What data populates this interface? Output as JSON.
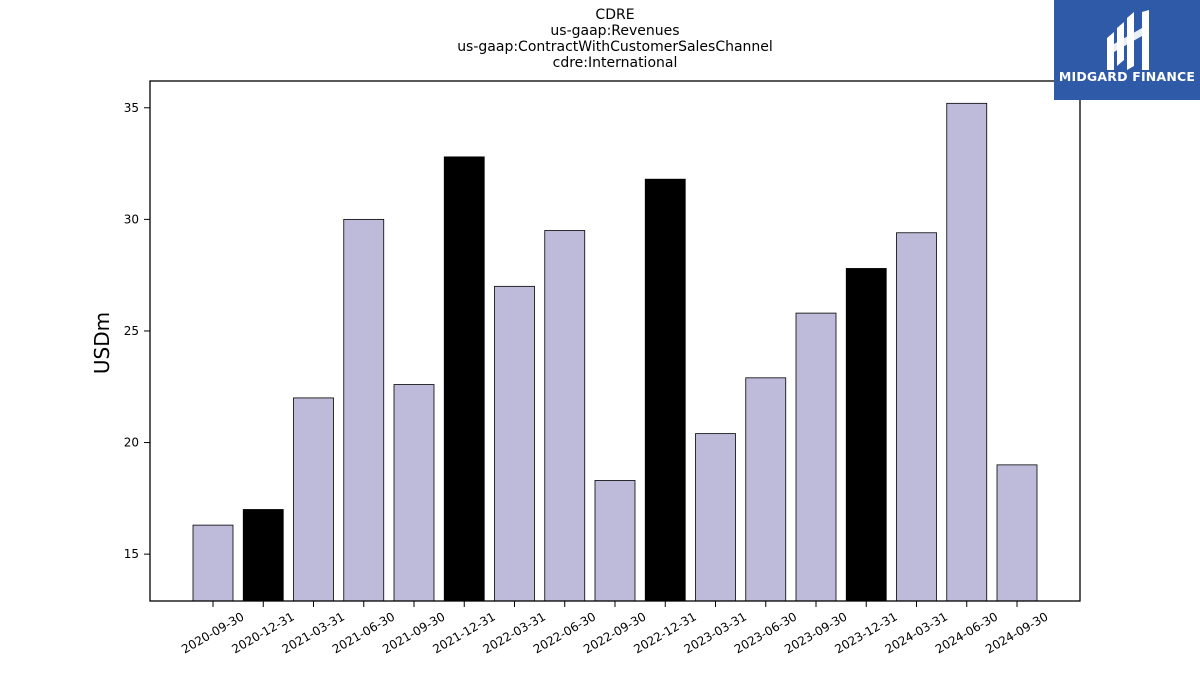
{
  "title_lines": [
    "CDRE",
    "us-gaap:Revenues",
    "us-gaap:ContractWithCustomerSalesChannel",
    "cdre:International"
  ],
  "logo": {
    "text": "MIDGARD FINANCE",
    "bg_color": "#2f5aa8"
  },
  "colors": {
    "normal": "#bebada",
    "highlight": "#000000",
    "edge": "#000000"
  },
  "chart_data": {
    "type": "bar",
    "title": "CDRE\nus-gaap:Revenues\nus-gaap:ContractWithCustomerSalesChannel\ncdre:International",
    "xlabel": "",
    "ylabel": "USDm",
    "ylim": [
      12.9,
      36.2
    ],
    "yticks": [
      15,
      20,
      25,
      30,
      35
    ],
    "categories": [
      "2020-09-30",
      "2020-12-31",
      "2021-03-31",
      "2021-06-30",
      "2021-09-30",
      "2021-12-31",
      "2022-03-31",
      "2022-06-30",
      "2022-09-30",
      "2022-12-31",
      "2023-03-31",
      "2023-06-30",
      "2023-09-30",
      "2023-12-31",
      "2024-03-31",
      "2024-06-30",
      "2024-09-30"
    ],
    "values": [
      16.3,
      17.0,
      22.0,
      30.0,
      22.6,
      32.8,
      27.0,
      29.5,
      18.3,
      31.8,
      20.4,
      22.9,
      25.8,
      27.8,
      29.4,
      35.2,
      19.0
    ],
    "highlighted": [
      false,
      true,
      false,
      false,
      false,
      true,
      false,
      false,
      false,
      true,
      false,
      false,
      false,
      true,
      false,
      false,
      false
    ],
    "grid": false,
    "legend": "none"
  }
}
